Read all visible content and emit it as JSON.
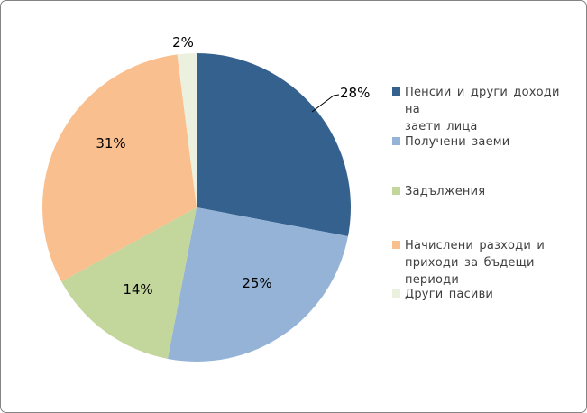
{
  "chart_data": {
    "type": "pie",
    "title": "",
    "categories": [
      "Пенсии и други доходи на заети лица",
      "Получени заеми",
      "Задължения",
      "Начислени разходи и приходи за бъдещи периоди",
      "Други пасиви"
    ],
    "values": [
      28,
      25,
      14,
      31,
      2
    ],
    "value_labels": [
      "28%",
      "25%",
      "14%",
      "31%",
      "2%"
    ],
    "colors": [
      "#35618F",
      "#95B3D7",
      "#C3D69B",
      "#FABF8F",
      "#EBF1DE"
    ],
    "legend_position": "right",
    "legend_labels": [
      "Пенсии и други доходи на\nзаети лица",
      "Получени заеми",
      "Задължения",
      "Начислени разходи и\nприходи за бъдещи\nпериоди",
      "Други пасиви"
    ],
    "direction": "clockwise",
    "start_angle_deg": 0
  }
}
